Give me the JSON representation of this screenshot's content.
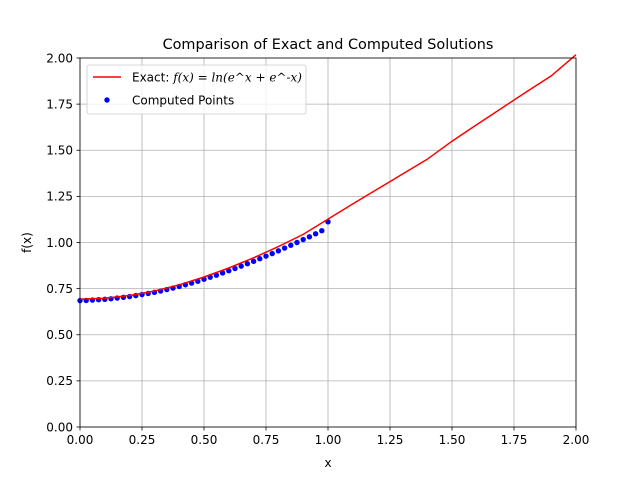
{
  "chart_data": {
    "type": "line",
    "title": "Comparison of Exact and Computed Solutions",
    "xlabel": "x",
    "ylabel": "f(x)",
    "xlim": [
      0.0,
      2.0
    ],
    "ylim": [
      0.0,
      2.0
    ],
    "grid": true,
    "legend_position": "upper-left",
    "x_ticks": [
      "0.00",
      "0.25",
      "0.50",
      "0.75",
      "1.00",
      "1.25",
      "1.50",
      "1.75",
      "2.00"
    ],
    "y_ticks": [
      "0.00",
      "0.25",
      "0.50",
      "0.75",
      "1.00",
      "1.25",
      "1.50",
      "1.75",
      "2.00"
    ],
    "series": [
      {
        "name": "Exact: f(x) = ln(e^x + e^-x)",
        "legend_prefix": "Exact: ",
        "legend_math": "f(x) = ln(e^x + e^-x)",
        "kind": "line",
        "color": "#ff0000",
        "x": [
          0.0,
          0.1,
          0.2,
          0.3,
          0.4,
          0.5,
          0.6,
          0.7,
          0.8,
          0.9,
          1.0,
          1.1,
          1.2,
          1.3,
          1.4,
          1.5,
          1.6,
          1.7,
          1.8,
          1.9,
          2.0
        ],
        "y": [
          0.693,
          0.698,
          0.713,
          0.737,
          0.771,
          0.813,
          0.862,
          0.917,
          0.978,
          1.044,
          1.127,
          1.209,
          1.29,
          1.371,
          1.451,
          1.549,
          1.639,
          1.728,
          1.816,
          1.903,
          2.018
        ]
      },
      {
        "name": "Computed Points",
        "legend_prefix": "Computed Points",
        "kind": "scatter",
        "color": "#0000ff",
        "x": [
          0.0,
          0.025,
          0.05,
          0.075,
          0.1,
          0.125,
          0.15,
          0.175,
          0.2,
          0.225,
          0.25,
          0.275,
          0.3,
          0.325,
          0.35,
          0.375,
          0.4,
          0.425,
          0.45,
          0.475,
          0.5,
          0.525,
          0.55,
          0.575,
          0.6,
          0.625,
          0.65,
          0.675,
          0.7,
          0.725,
          0.75,
          0.775,
          0.8,
          0.825,
          0.85,
          0.875,
          0.9,
          0.925,
          0.95,
          0.975,
          1.0
        ],
        "y": [
          0.685,
          0.686,
          0.688,
          0.69,
          0.692,
          0.695,
          0.699,
          0.703,
          0.707,
          0.712,
          0.718,
          0.724,
          0.73,
          0.737,
          0.745,
          0.753,
          0.762,
          0.771,
          0.78,
          0.79,
          0.801,
          0.812,
          0.823,
          0.835,
          0.847,
          0.859,
          0.872,
          0.885,
          0.898,
          0.912,
          0.926,
          0.94,
          0.955,
          0.97,
          0.985,
          1.0,
          1.016,
          1.031,
          1.047,
          1.064,
          1.112
        ]
      }
    ]
  }
}
